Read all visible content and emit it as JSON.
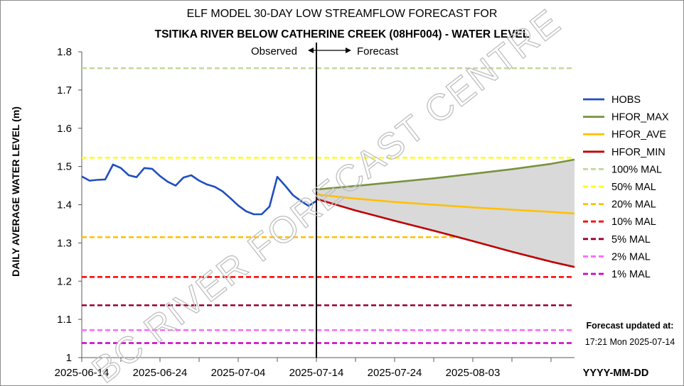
{
  "chart_data": {
    "type": "line",
    "title": "ELF MODEL 30-DAY LOW STREAMFLOW FORECAST FOR",
    "subtitle": "TSITIKA RIVER BELOW CATHERINE CREEK (08HF004) - WATER LEVEL",
    "xlabel": "YYYY-MM-DD",
    "ylabel": "DAILY AVERAGE WATER LEVEL (m)",
    "ylim": [
      1.0,
      1.8
    ],
    "y_ticks": [
      "1",
      "1.1",
      "1.2",
      "1.3",
      "1.4",
      "1.5",
      "1.6",
      "1.7",
      "1.8"
    ],
    "x_ticks": [
      "2025-06-14",
      "2025-06-24",
      "2025-07-04",
      "2025-07-14",
      "2025-07-24",
      "2025-08-03"
    ],
    "x_range_days": [
      0,
      63
    ],
    "split_day": 30,
    "observed_label": "Observed",
    "forecast_label": "Forecast",
    "watermark": "BC RIVER FORECAST CENTRE",
    "updated_label": "Forecast updated at:",
    "updated_time": "17:21 Mon 2025-07-14",
    "legend_position": "right",
    "series": [
      {
        "name": "HOBS",
        "color": "#1f4fbf",
        "style": "solid",
        "x": [
          0,
          1,
          2,
          3,
          4,
          5,
          6,
          7,
          8,
          9,
          10,
          11,
          12,
          13,
          14,
          15,
          16,
          17,
          18,
          19,
          20,
          21,
          22,
          23,
          24,
          25,
          26,
          27,
          28,
          29,
          30
        ],
        "values": [
          1.474,
          1.463,
          1.465,
          1.466,
          1.505,
          1.496,
          1.477,
          1.472,
          1.496,
          1.494,
          1.475,
          1.46,
          1.45,
          1.471,
          1.477,
          1.463,
          1.453,
          1.447,
          1.435,
          1.417,
          1.398,
          1.383,
          1.375,
          1.375,
          1.395,
          1.473,
          1.45,
          1.425,
          1.41,
          1.397,
          1.41
        ]
      },
      {
        "name": "HFOR_MAX",
        "color": "#77933c",
        "style": "solid",
        "x": [
          30,
          35,
          40,
          45,
          50,
          55,
          60,
          63
        ],
        "values": [
          1.44,
          1.449,
          1.459,
          1.469,
          1.481,
          1.493,
          1.507,
          1.518
        ]
      },
      {
        "name": "HFOR_AVE",
        "color": "#ffc000",
        "style": "solid",
        "x": [
          30,
          35,
          40,
          45,
          50,
          55,
          60,
          63
        ],
        "values": [
          1.427,
          1.416,
          1.407,
          1.4,
          1.393,
          1.387,
          1.381,
          1.377
        ]
      },
      {
        "name": "HFOR_MIN",
        "color": "#c00000",
        "style": "solid",
        "x": [
          30,
          35,
          40,
          45,
          50,
          55,
          60,
          63
        ],
        "values": [
          1.415,
          1.385,
          1.358,
          1.332,
          1.305,
          1.277,
          1.251,
          1.237
        ]
      }
    ],
    "mal_lines": [
      {
        "name": "100% MAL",
        "value": 1.757,
        "color": "#c3d69b"
      },
      {
        "name": "50% MAL",
        "value": 1.523,
        "color": "#ffff00"
      },
      {
        "name": "20% MAL",
        "value": 1.315,
        "color": "#ffc000"
      },
      {
        "name": "10% MAL",
        "value": 1.211,
        "color": "#ff0000"
      },
      {
        "name": "5% MAL",
        "value": 1.137,
        "color": "#990033"
      },
      {
        "name": "2% MAL",
        "value": 1.072,
        "color": "#ff66ff"
      },
      {
        "name": "1% MAL",
        "value": 1.038,
        "color": "#cc00cc"
      }
    ],
    "band_color": "#d9d9d9"
  }
}
